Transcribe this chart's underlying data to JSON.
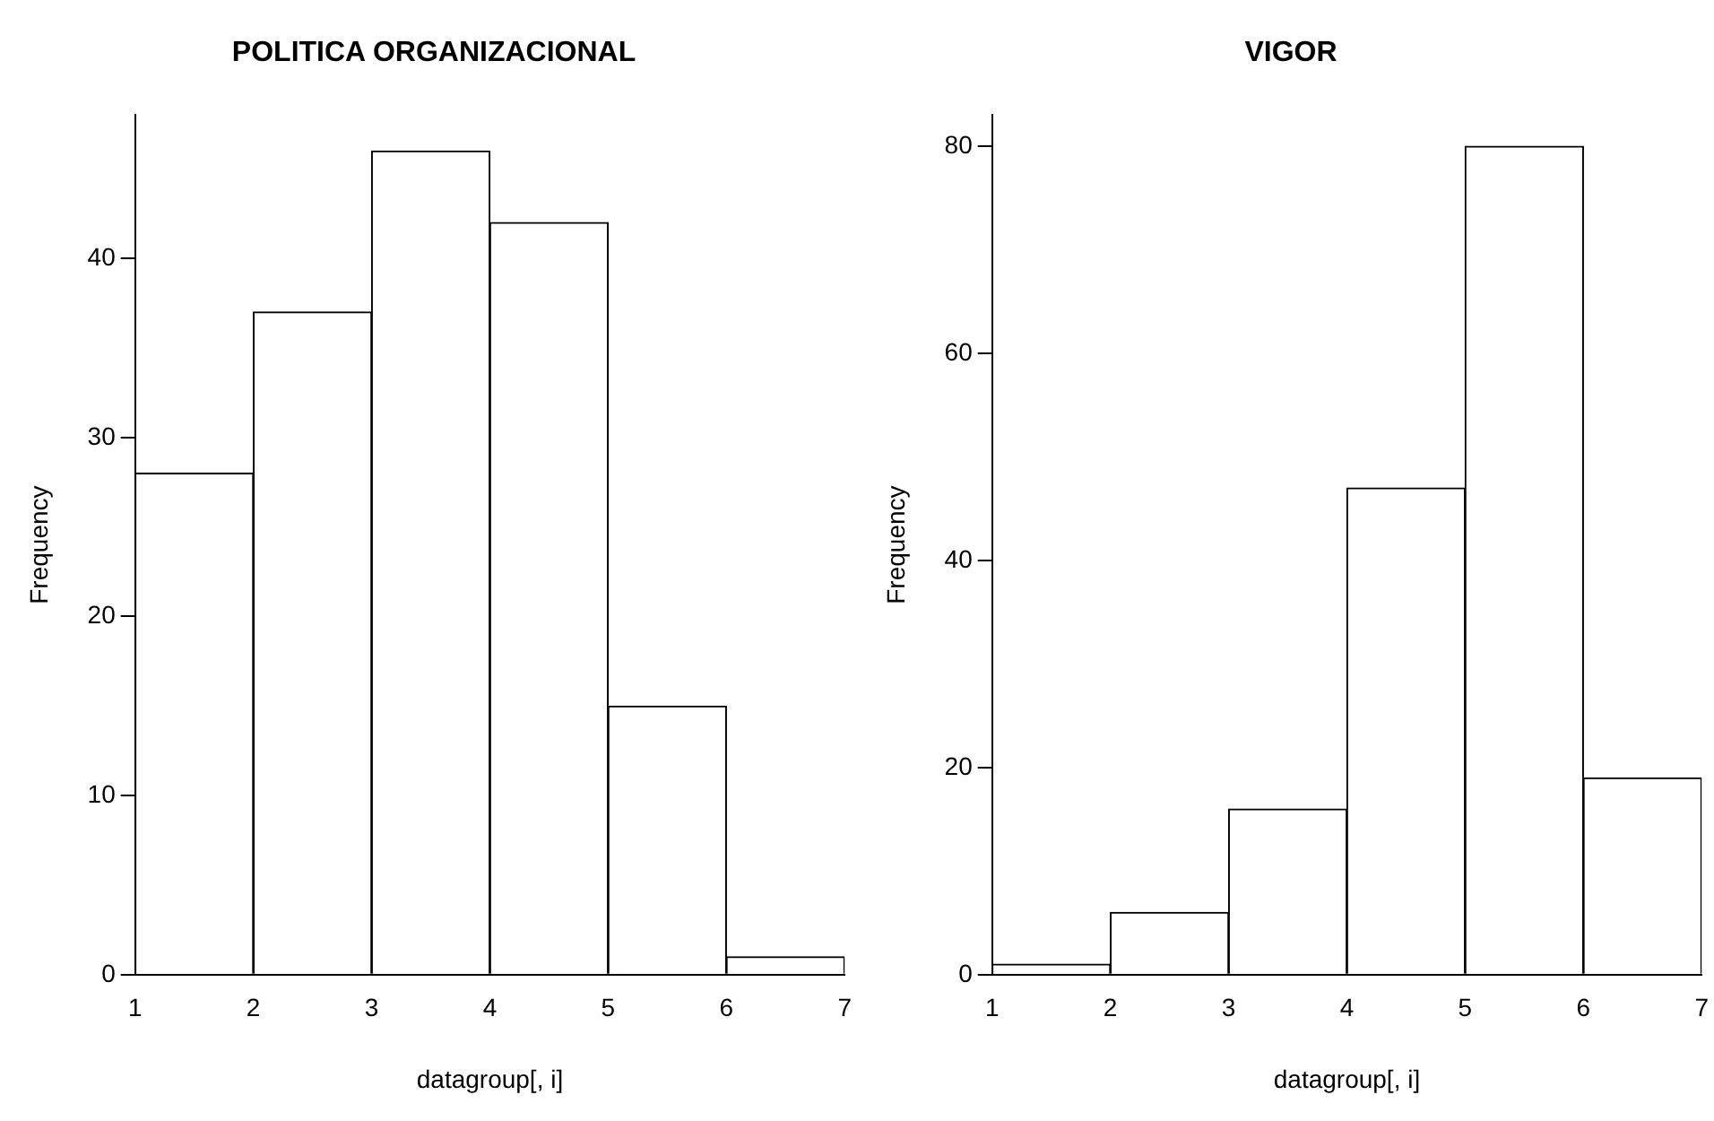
{
  "chart_data": [
    {
      "type": "histogram",
      "title": "POLITICA ORGANIZACIONAL",
      "xlabel": "datagroup[, i]",
      "ylabel": "Frequency",
      "bins": [
        1,
        2,
        3,
        4,
        5,
        6,
        7
      ],
      "values": [
        28,
        37,
        46,
        42,
        15,
        1
      ],
      "color": "#ffffff",
      "xlim": [
        1,
        7
      ],
      "xticks": [
        1,
        2,
        3,
        4,
        5,
        6,
        7
      ],
      "ylim": [
        0,
        48
      ],
      "yticks": [
        0,
        10,
        20,
        30,
        40
      ]
    },
    {
      "type": "histogram",
      "title": "VIGOR",
      "xlabel": "datagroup[, i]",
      "ylabel": "Frequency",
      "bins": [
        1,
        2,
        3,
        4,
        5,
        6,
        7
      ],
      "values": [
        1,
        6,
        16,
        47,
        80,
        19
      ],
      "color": "#ffffff",
      "xlim": [
        1,
        7
      ],
      "xticks": [
        1,
        2,
        3,
        4,
        5,
        6,
        7
      ],
      "ylim": [
        0,
        83
      ],
      "yticks": [
        0,
        20,
        40,
        60,
        80
      ]
    }
  ]
}
